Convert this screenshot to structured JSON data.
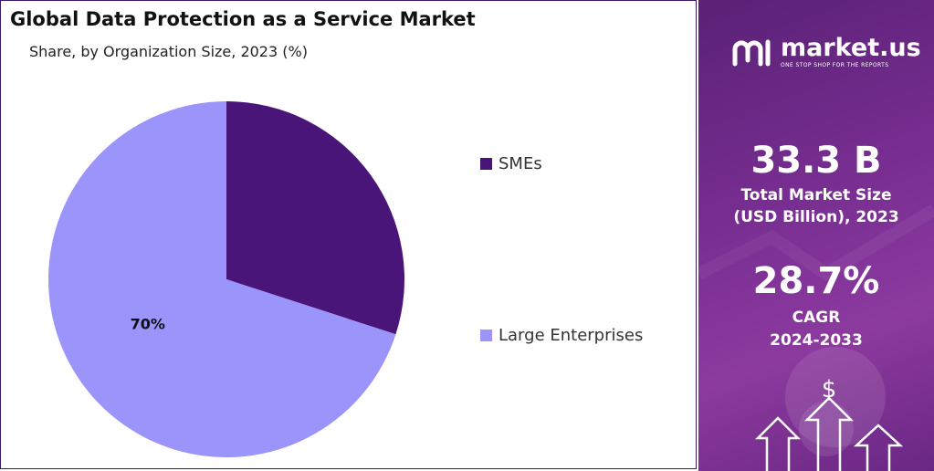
{
  "chart_data": {
    "type": "pie",
    "title": "Global Data Protection as a Service Market",
    "subtitle": "Share, by Organization Size, 2023 (%)",
    "categories": [
      "SMEs",
      "Large Enterprises"
    ],
    "values": [
      30,
      70
    ],
    "colors": [
      "#4a1579",
      "#9a94fb"
    ],
    "data_labels": [
      "",
      "70%"
    ],
    "legend_position": "right"
  },
  "brand": {
    "name": "market.us",
    "tagline": "ONE STOP SHOP FOR THE REPORTS"
  },
  "stats": {
    "market_size_value": "33.3 B",
    "market_size_label_line1": "Total Market Size",
    "market_size_label_line2": "(USD Billion), 2023",
    "cagr_value": "28.7%",
    "cagr_label_line1": "CAGR",
    "cagr_label_line2": "2024-2033"
  },
  "decor": {
    "dollar_symbol": "$",
    "side_panel_color": "#7a2f93"
  }
}
